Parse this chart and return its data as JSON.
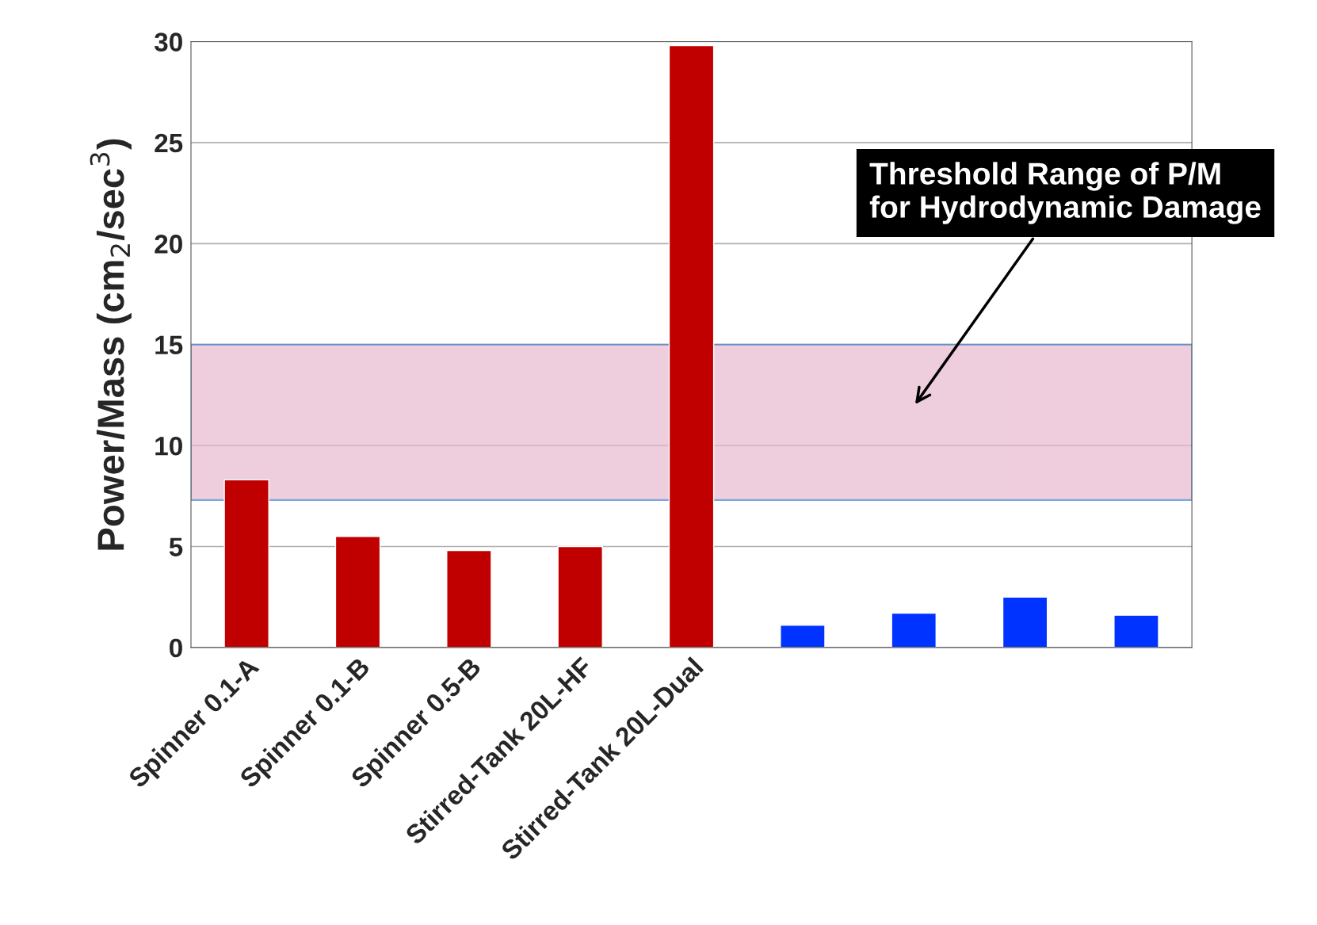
{
  "chart_data": {
    "type": "bar",
    "ylabel": "Power/Mass (cm$_{2}$/sec$^{3}$)",
    "categories": [
      "Spinner 0.1-A",
      "Spinner 0.1-B",
      "Spinner 0.5-B",
      "Stirred-Tank 20L-HF",
      "Stirred-Tank 20L-Dual",
      null,
      null,
      null,
      null
    ],
    "values": [
      8.3,
      5.5,
      4.8,
      5.0,
      29.8,
      1.1,
      1.7,
      2.5,
      1.6
    ],
    "colors": [
      "#c00000",
      "#c00000",
      "#c00000",
      "#c00000",
      "#c00000",
      "#0033ff",
      "#0033ff",
      "#0033ff",
      "#0033ff"
    ],
    "ylim": [
      0,
      30
    ],
    "yticks": [
      0,
      5,
      10,
      15,
      20,
      25,
      30
    ],
    "grid": "y",
    "bands": [
      {
        "axis": "y",
        "from": 7.3,
        "to": 15,
        "label": "Threshold Range of P/M\nfor Hydrodynamic Damage",
        "color": "#e8b8cf"
      }
    ]
  }
}
